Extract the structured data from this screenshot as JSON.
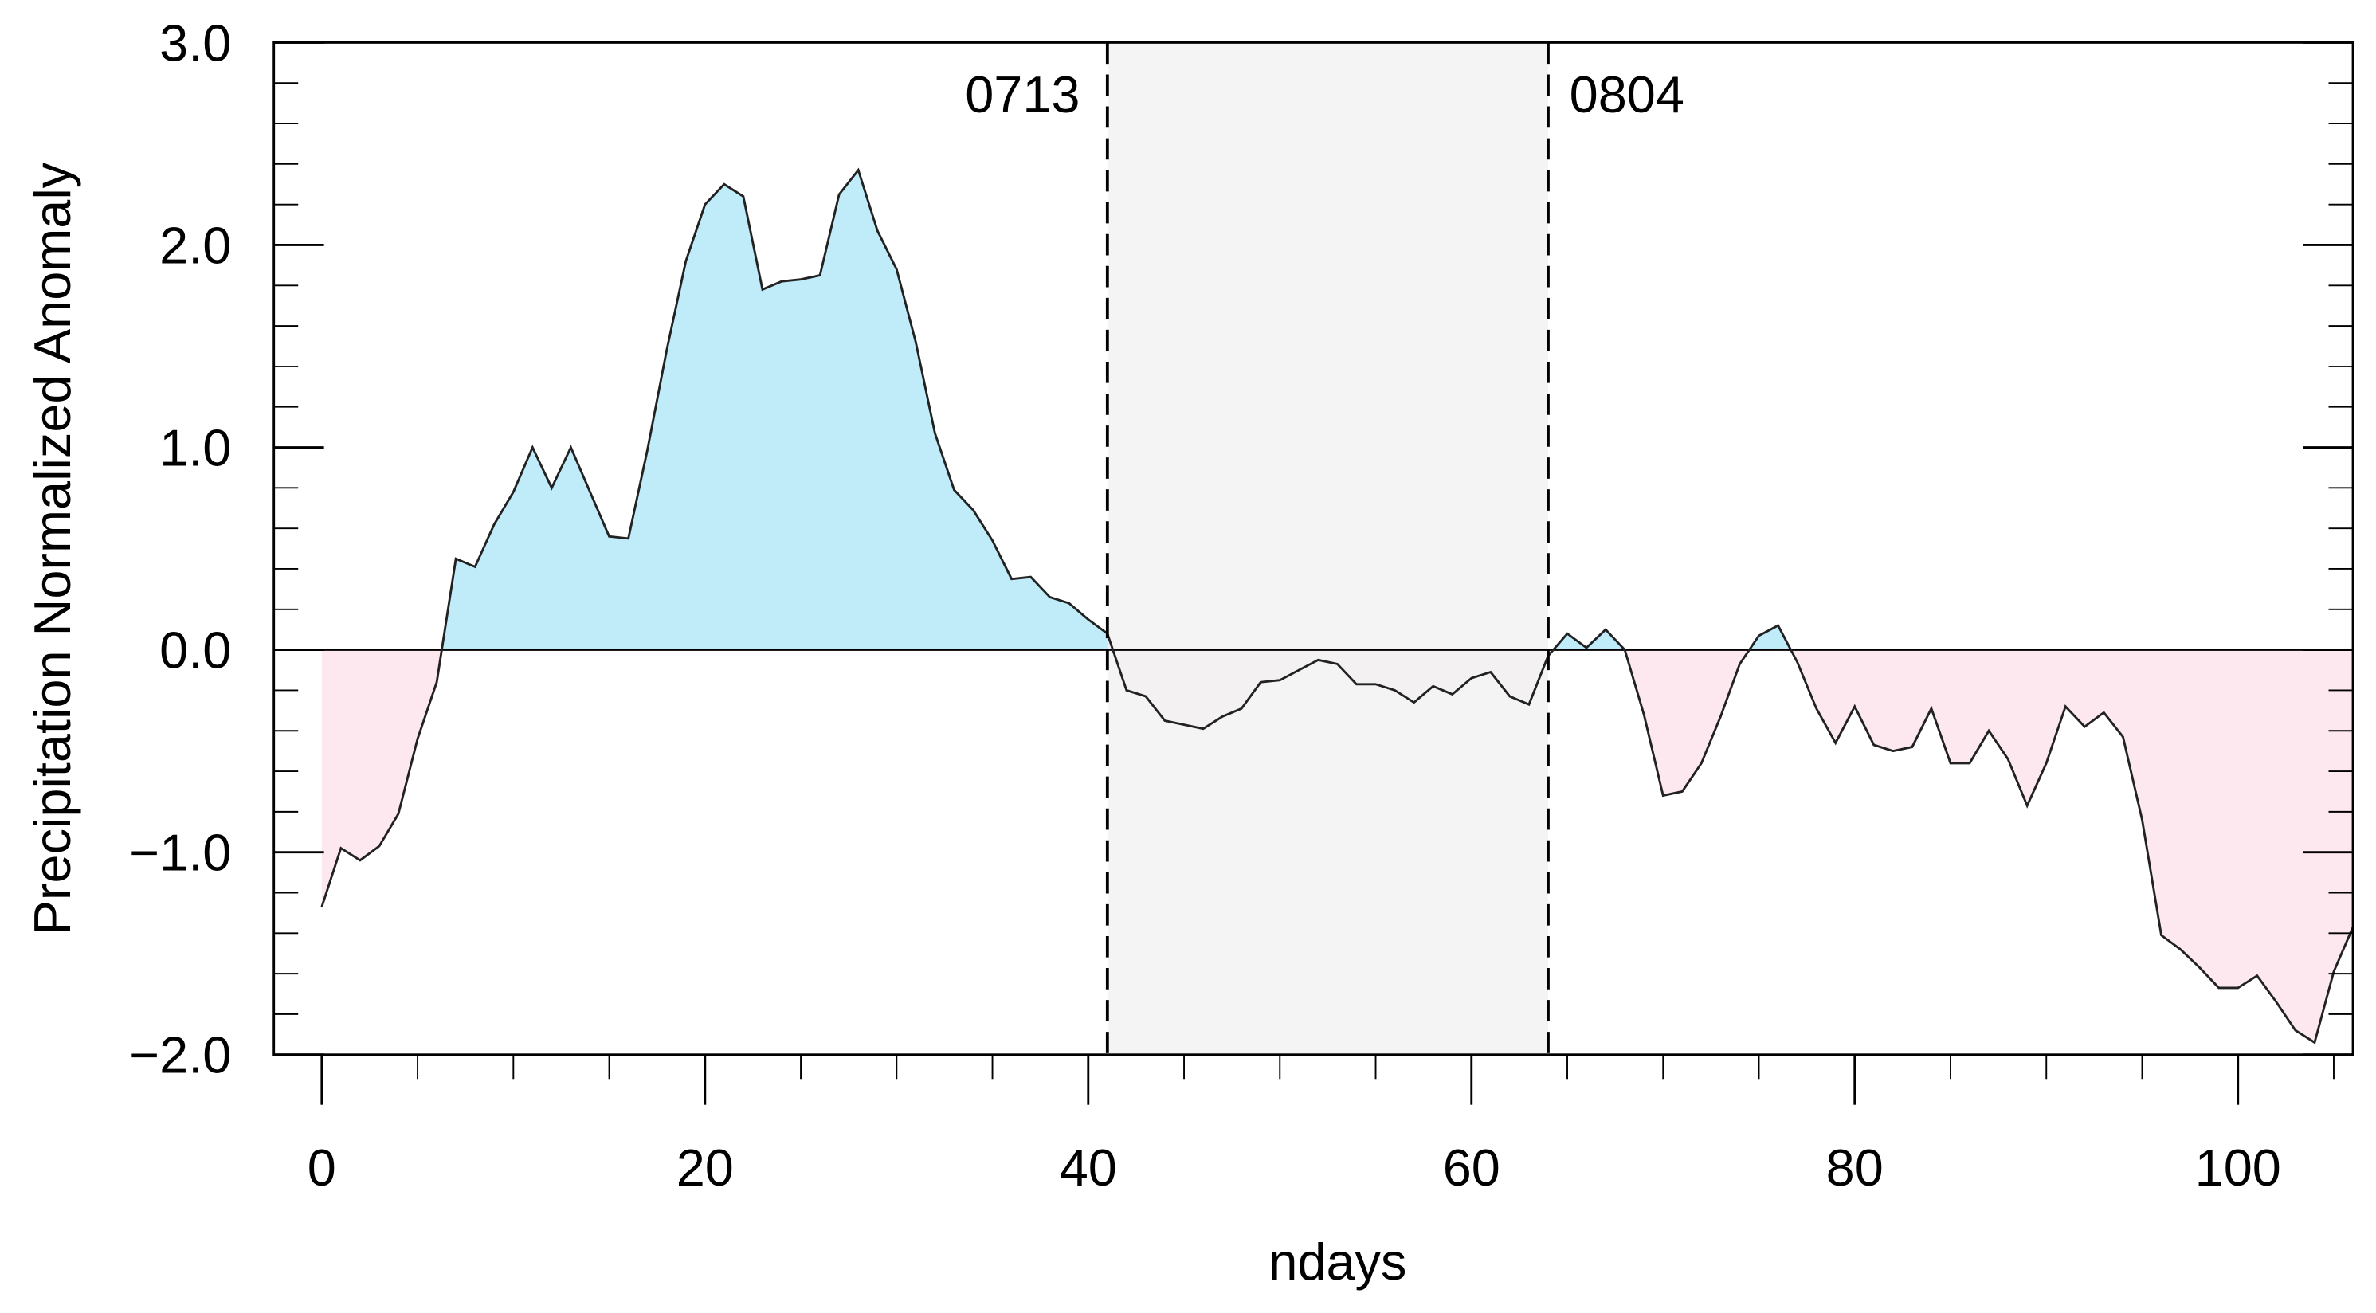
{
  "chart_data": {
    "type": "area",
    "xlabel": "ndays",
    "ylabel": "Precipitation Normalized Anomaly",
    "x": [
      0,
      1,
      2,
      3,
      4,
      5,
      6,
      7,
      8,
      9,
      10,
      11,
      12,
      13,
      14,
      15,
      16,
      17,
      18,
      19,
      20,
      21,
      22,
      23,
      24,
      25,
      26,
      27,
      28,
      29,
      30,
      31,
      32,
      33,
      34,
      35,
      36,
      37,
      38,
      39,
      40,
      41,
      42,
      43,
      44,
      45,
      46,
      47,
      48,
      49,
      50,
      51,
      52,
      53,
      54,
      55,
      56,
      57,
      58,
      59,
      60,
      61,
      62,
      63,
      64,
      65,
      66,
      67,
      68,
      69,
      70,
      71,
      72,
      73,
      74,
      75,
      76,
      77,
      78,
      79,
      80,
      81,
      82,
      83,
      84,
      85,
      86,
      87,
      88,
      89,
      90,
      91,
      92,
      93,
      94,
      95,
      96,
      97,
      98,
      99,
      100,
      101,
      102,
      103,
      104,
      105,
      106
    ],
    "values": [
      -1.27,
      -0.98,
      -1.04,
      -0.97,
      -0.81,
      -0.44,
      -0.16,
      0.45,
      0.41,
      0.62,
      0.78,
      1.0,
      0.8,
      1.0,
      0.78,
      0.56,
      0.55,
      0.99,
      1.48,
      1.92,
      2.2,
      2.3,
      2.24,
      1.78,
      1.82,
      1.83,
      1.85,
      2.25,
      2.37,
      2.07,
      1.88,
      1.52,
      1.07,
      0.79,
      0.69,
      0.54,
      0.35,
      0.36,
      0.26,
      0.23,
      0.15,
      0.08,
      -0.2,
      -0.23,
      -0.35,
      -0.37,
      -0.39,
      -0.33,
      -0.29,
      -0.16,
      -0.15,
      -0.1,
      -0.05,
      -0.07,
      -0.17,
      -0.17,
      -0.2,
      -0.26,
      -0.18,
      -0.22,
      -0.14,
      -0.11,
      -0.23,
      -0.27,
      -0.03,
      0.08,
      0.01,
      0.1,
      0.0,
      -0.32,
      -0.72,
      -0.7,
      -0.56,
      -0.33,
      -0.07,
      0.07,
      0.12,
      -0.06,
      -0.29,
      -0.46,
      -0.28,
      -0.47,
      -0.5,
      -0.48,
      -0.29,
      -0.56,
      -0.56,
      -0.4,
      -0.54,
      -0.77,
      -0.56,
      -0.28,
      -0.38,
      -0.31,
      -0.43,
      -0.84,
      -1.41,
      -1.48,
      -1.57,
      -1.67,
      -1.67,
      -1.61,
      -1.74,
      -1.88,
      -1.94,
      -1.59,
      -1.37
    ],
    "line_color": "#222222",
    "pos_color": "#c0ecfa",
    "neg_color": "#fde8ef",
    "xlim": [
      -2.5,
      106
    ],
    "ylim": [
      -2.0,
      3.0
    ],
    "xticks": [
      0,
      20,
      40,
      60,
      80,
      100
    ],
    "yticks": [
      {
        "value": -2,
        "label": "−2.0"
      },
      {
        "value": -1,
        "label": "−1.0"
      },
      {
        "value": 0,
        "label": "0.0"
      },
      {
        "value": 1,
        "label": "1.0"
      },
      {
        "value": 2,
        "label": "2.0"
      },
      {
        "value": 3,
        "label": "3.0"
      }
    ],
    "minor_ticks": {
      "x": 5,
      "y": 0.2
    },
    "shade": {
      "xrange": [
        41,
        64
      ],
      "color": "#f2f2f2"
    },
    "vlines": [
      {
        "x": 41,
        "label": "0713"
      },
      {
        "x": 64,
        "label": "0804"
      }
    ]
  }
}
